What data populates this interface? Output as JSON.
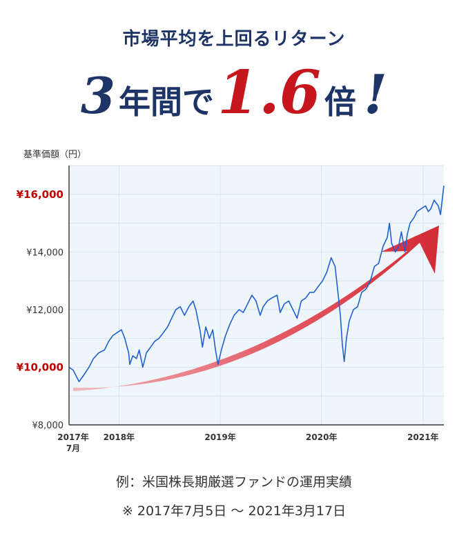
{
  "header": {
    "subtitle": "市場平均を上回るリターン",
    "years_number": "3",
    "years_unit": "年間で",
    "multiplier": "1.6",
    "multiplier_unit": "倍",
    "exclamation": "!"
  },
  "chart_data": {
    "type": "line",
    "ylabel": "基準価額（円）",
    "ylim": [
      8000,
      17000
    ],
    "y_ticks": [
      {
        "value": 8000,
        "label": "¥8,000",
        "highlight": false
      },
      {
        "value": 10000,
        "label": "¥10,000",
        "highlight": true
      },
      {
        "value": 12000,
        "label": "¥12,000",
        "highlight": false
      },
      {
        "value": 14000,
        "label": "¥14,000",
        "highlight": false
      },
      {
        "value": 16000,
        "label": "¥16,000",
        "highlight": true
      }
    ],
    "x_ticks": [
      {
        "date": "2017-07-05",
        "label": "2017年",
        "sublabel": "7月"
      },
      {
        "date": "2018-01-01",
        "label": "2018年"
      },
      {
        "date": "2019-01-01",
        "label": "2019年"
      },
      {
        "date": "2020-01-01",
        "label": "2020年"
      },
      {
        "date": "2021-01-01",
        "label": "2021年"
      }
    ],
    "xlim": [
      "2017-07-05",
      "2021-03-17"
    ],
    "grid": true,
    "colors": {
      "line": "#1f5fd0",
      "highlight_tick": "#c00000",
      "plot_bg": "#eef6fb",
      "arrow": "#d6303a"
    },
    "series": [
      {
        "x": [
          "2017-07-05",
          "2017-07-20",
          "2017-08-10",
          "2017-08-25",
          "2017-09-15",
          "2017-10-01",
          "2017-10-20",
          "2017-11-10",
          "2017-11-25",
          "2017-12-10",
          "2017-12-25",
          "2018-01-10",
          "2018-01-22",
          "2018-02-05",
          "2018-02-09",
          "2018-02-20",
          "2018-03-05",
          "2018-03-15",
          "2018-03-28",
          "2018-04-10",
          "2018-04-25",
          "2018-05-10",
          "2018-05-25",
          "2018-06-10",
          "2018-06-25",
          "2018-07-10",
          "2018-07-25",
          "2018-08-10",
          "2018-08-25",
          "2018-09-10",
          "2018-09-25",
          "2018-10-05",
          "2018-10-20",
          "2018-10-29",
          "2018-11-10",
          "2018-11-23",
          "2018-12-05",
          "2018-12-15",
          "2018-12-24",
          "2019-01-05",
          "2019-01-20",
          "2019-02-05",
          "2019-02-20",
          "2019-03-10",
          "2019-03-25",
          "2019-04-10",
          "2019-04-25",
          "2019-05-10",
          "2019-05-25",
          "2019-06-05",
          "2019-06-20",
          "2019-07-05",
          "2019-07-25",
          "2019-08-05",
          "2019-08-20",
          "2019-09-05",
          "2019-09-20",
          "2019-10-05",
          "2019-10-20",
          "2019-11-05",
          "2019-11-20",
          "2019-12-05",
          "2019-12-20",
          "2020-01-05",
          "2020-01-20",
          "2020-02-05",
          "2020-02-19",
          "2020-02-28",
          "2020-03-09",
          "2020-03-16",
          "2020-03-23",
          "2020-03-31",
          "2020-04-10",
          "2020-04-25",
          "2020-05-10",
          "2020-05-25",
          "2020-06-08",
          "2020-06-15",
          "2020-06-25",
          "2020-07-10",
          "2020-07-25",
          "2020-08-10",
          "2020-08-25",
          "2020-09-02",
          "2020-09-10",
          "2020-09-23",
          "2020-10-05",
          "2020-10-15",
          "2020-10-28",
          "2020-11-05",
          "2020-11-15",
          "2020-11-30",
          "2020-12-10",
          "2020-12-25",
          "2021-01-10",
          "2021-01-20",
          "2021-01-29",
          "2021-02-10",
          "2021-02-25",
          "2021-03-05",
          "2021-03-17"
        ],
        "y": [
          10000,
          9900,
          9500,
          9700,
          10000,
          10300,
          10500,
          10600,
          10900,
          11100,
          11200,
          11300,
          11000,
          10500,
          10100,
          10400,
          10300,
          10600,
          10000,
          10500,
          10700,
          10900,
          11000,
          11200,
          11400,
          11700,
          12000,
          12100,
          11800,
          12100,
          12300,
          12000,
          11300,
          10700,
          11400,
          11000,
          11300,
          10600,
          10100,
          10600,
          11100,
          11500,
          11800,
          12000,
          11900,
          12200,
          12500,
          12300,
          11800,
          12100,
          12300,
          12400,
          12500,
          11900,
          12200,
          12300,
          12000,
          11700,
          12300,
          12400,
          12600,
          12600,
          12800,
          13000,
          13300,
          13800,
          13500,
          12700,
          11800,
          10800,
          10200,
          11000,
          11600,
          12000,
          12100,
          12600,
          12700,
          12800,
          13000,
          13500,
          13600,
          14200,
          14500,
          15000,
          14300,
          14000,
          14200,
          14700,
          14000,
          14600,
          15000,
          15200,
          15400,
          15500,
          15600,
          15400,
          15500,
          15800,
          15600,
          15300,
          16300
        ]
      }
    ]
  },
  "footnotes": {
    "line1": "例：米国株長期厳選ファンドの運用実績",
    "line2": "※ 2017年7月5日 〜 2021年3月17日"
  }
}
